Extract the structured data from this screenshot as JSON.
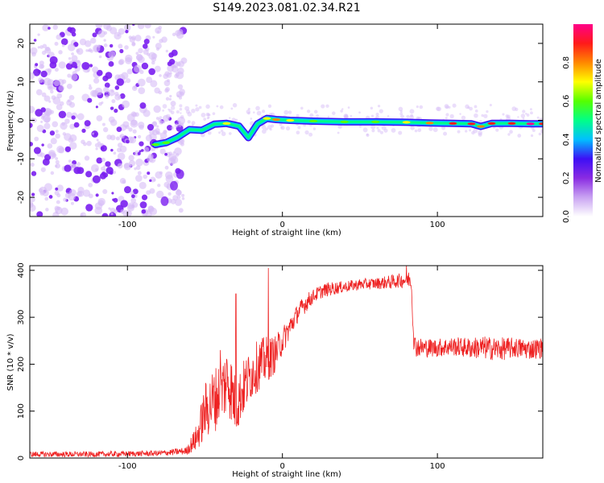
{
  "figure_title": "S149.2023.081.02.34.R21",
  "colors": {
    "snr_line": "#ee2222",
    "frame": "#000000",
    "colormap": [
      "#ffffff",
      "#c9a3f2",
      "#8a2be2",
      "#3d0ff5",
      "#00bfff",
      "#00ff88",
      "#55ff00",
      "#ffff00",
      "#ff8800",
      "#ff1a1a",
      "#ff0088"
    ]
  },
  "chart_data": [
    {
      "type": "heatmap",
      "title": "",
      "xlabel": "Height of straight line (km)",
      "ylabel": "Frequency (Hz)",
      "xlim": [
        -163,
        168
      ],
      "ylim": [
        -25,
        25
      ],
      "x_ticks": [
        -100,
        0,
        100
      ],
      "y_ticks": [
        -20,
        -10,
        0,
        10,
        20
      ],
      "colorbar": {
        "label": "Normalized spectral amplitude",
        "range": [
          0.0,
          1.0
        ],
        "ticks": [
          0.0,
          0.2,
          0.4,
          0.6,
          0.8
        ]
      },
      "noise_region_x": [
        -163,
        -73
      ],
      "ridge": [
        {
          "x": -82,
          "y": -6.3,
          "a": 0.55
        },
        {
          "x": -75,
          "y": -5.8,
          "a": 0.6
        },
        {
          "x": -68,
          "y": -4.5,
          "a": 0.45
        },
        {
          "x": -60,
          "y": -2.4,
          "a": 0.5
        },
        {
          "x": -52,
          "y": -2.6,
          "a": 0.45
        },
        {
          "x": -44,
          "y": -1.0,
          "a": 0.5
        },
        {
          "x": -36,
          "y": -0.8,
          "a": 0.65
        },
        {
          "x": -28,
          "y": -1.5,
          "a": 0.45
        },
        {
          "x": -22,
          "y": -4.5,
          "a": 0.4
        },
        {
          "x": -16,
          "y": -0.9,
          "a": 0.5
        },
        {
          "x": -10,
          "y": 0.5,
          "a": 0.7
        },
        {
          "x": -4,
          "y": 0.2,
          "a": 0.75
        },
        {
          "x": 5,
          "y": 0.0,
          "a": 0.7
        },
        {
          "x": 20,
          "y": -0.2,
          "a": 0.55
        },
        {
          "x": 40,
          "y": -0.4,
          "a": 0.55
        },
        {
          "x": 60,
          "y": -0.4,
          "a": 0.6
        },
        {
          "x": 80,
          "y": -0.5,
          "a": 0.65
        },
        {
          "x": 95,
          "y": -0.7,
          "a": 0.8
        },
        {
          "x": 110,
          "y": -0.8,
          "a": 0.9
        },
        {
          "x": 122,
          "y": -0.9,
          "a": 0.85
        },
        {
          "x": 128,
          "y": -1.6,
          "a": 0.8
        },
        {
          "x": 135,
          "y": -0.8,
          "a": 0.85
        },
        {
          "x": 148,
          "y": -0.8,
          "a": 0.9
        },
        {
          "x": 160,
          "y": -0.9,
          "a": 0.95
        },
        {
          "x": 168,
          "y": -0.9,
          "a": 0.85
        }
      ],
      "low_tail": [
        {
          "x": -66,
          "y": -14
        },
        {
          "x": -70,
          "y": -17
        },
        {
          "x": -76,
          "y": -21
        }
      ]
    },
    {
      "type": "line",
      "title": "",
      "xlabel": "Height of straight line (km)",
      "ylabel": "SNR (10 * v/v)",
      "xlim": [
        -163,
        168
      ],
      "ylim": [
        0,
        410
      ],
      "x_ticks": [
        -100,
        0,
        100
      ],
      "y_ticks": [
        0,
        100,
        200,
        300,
        400
      ],
      "series": [
        {
          "envelope_x": [
            -163,
            -120,
            -80,
            -62,
            -55,
            -50,
            -45,
            -40,
            -35,
            -30,
            -25,
            -20,
            -15,
            -10,
            -5,
            0,
            5,
            10,
            15,
            20,
            25,
            30,
            40,
            50,
            60,
            70,
            75,
            80,
            83,
            85,
            90,
            100,
            110,
            120,
            130,
            140,
            150,
            160,
            168
          ],
          "envelope_y": [
            8,
            8,
            10,
            15,
            45,
            100,
            120,
            140,
            170,
            110,
            150,
            180,
            200,
            210,
            220,
            250,
            280,
            310,
            330,
            345,
            355,
            360,
            365,
            370,
            372,
            375,
            378,
            380,
            382,
            240,
            235,
            235,
            238,
            235,
            235,
            232,
            235,
            232,
            235
          ],
          "envelope_noise": [
            6,
            6,
            6,
            8,
            30,
            60,
            70,
            70,
            80,
            60,
            60,
            55,
            55,
            50,
            40,
            30,
            25,
            20,
            20,
            15,
            15,
            15,
            12,
            12,
            12,
            15,
            15,
            18,
            20,
            25,
            20,
            20,
            20,
            22,
            25,
            25,
            22,
            22,
            22
          ],
          "spikes": [
            {
              "x": -30,
              "y": 350
            },
            {
              "x": -9,
              "y": 405
            },
            {
              "x": -40,
              "y": 230
            },
            {
              "x": 80,
              "y": 410
            }
          ]
        }
      ]
    }
  ]
}
